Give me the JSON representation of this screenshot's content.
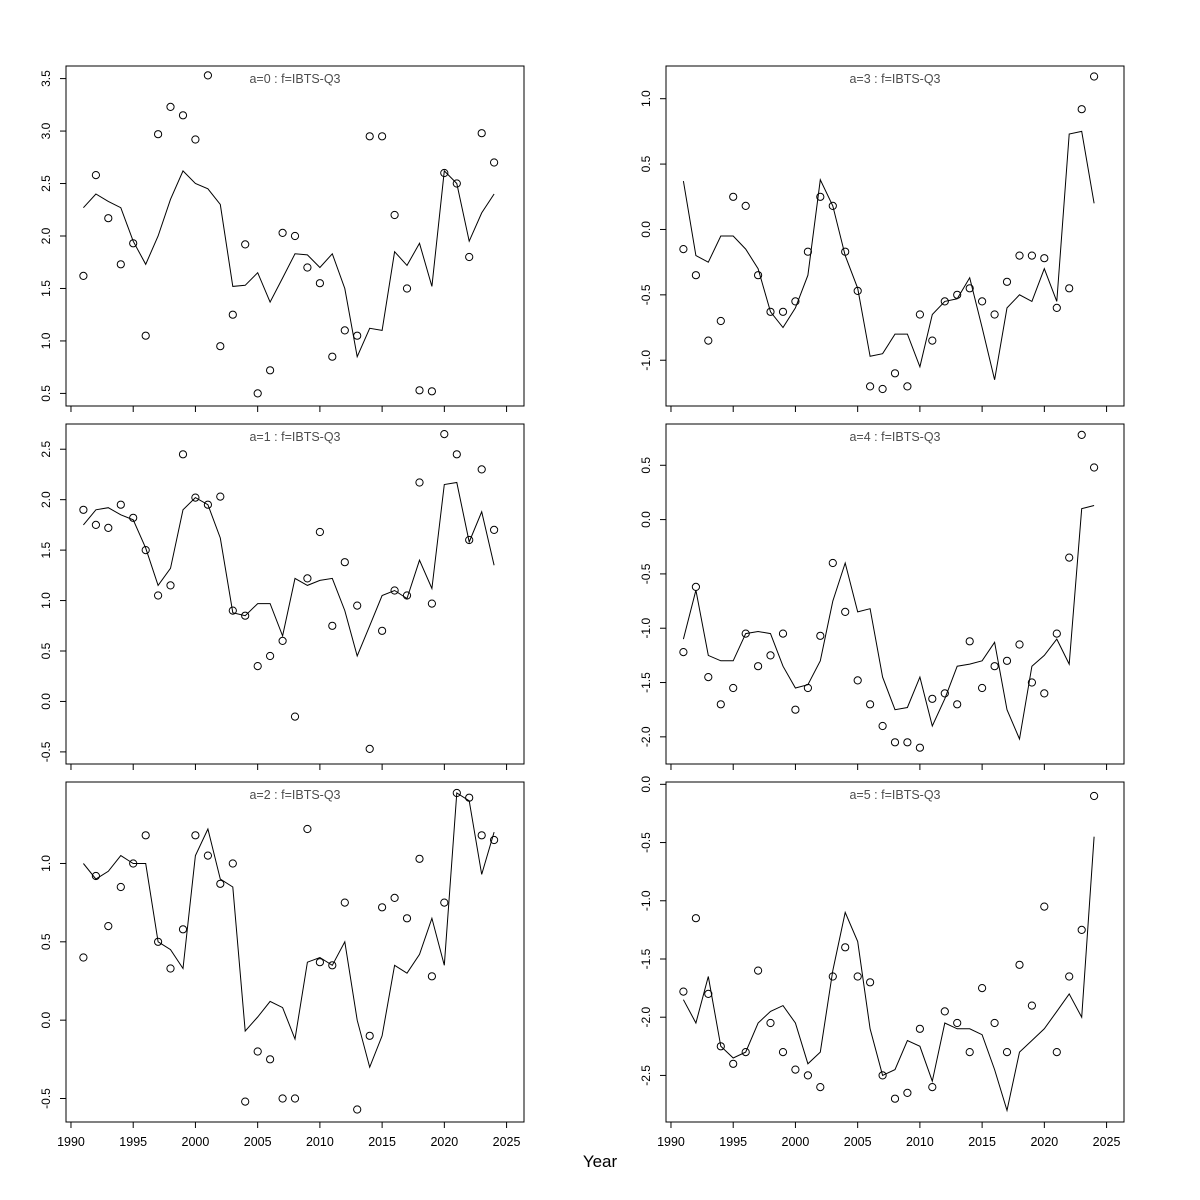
{
  "figure": {
    "background": "#ffffff",
    "axis_color": "#000000",
    "line_color": "#000000",
    "point_color": "#000000",
    "title_color": "#4d4d4d"
  },
  "chart_data": {
    "type": "scatter",
    "description": "Six-panel observed (circles) vs fitted (line) survey index plot, ages 0-5, fleet IBTS-Q3",
    "x_label": "Year",
    "x_lim": [
      1989.6,
      2026.4
    ],
    "x_ticks": [
      1990,
      1995,
      2000,
      2005,
      2010,
      2015,
      2020,
      2025
    ],
    "x": [
      1991,
      1992,
      1993,
      1994,
      1995,
      1996,
      1997,
      1998,
      1999,
      2000,
      2001,
      2002,
      2003,
      2004,
      2005,
      2006,
      2007,
      2008,
      2009,
      2010,
      2011,
      2012,
      2013,
      2014,
      2015,
      2016,
      2017,
      2018,
      2019,
      2020,
      2021,
      2022,
      2023,
      2024
    ],
    "panels": [
      {
        "title": "a=0 : f=IBTS-Q3",
        "y_lim": [
          0.38,
          3.62
        ],
        "y_ticks": [
          0.5,
          1.0,
          1.5,
          2.0,
          2.5,
          3.0,
          3.5
        ],
        "points": [
          1.62,
          2.58,
          2.17,
          1.73,
          1.93,
          1.05,
          2.97,
          3.23,
          3.15,
          2.92,
          3.53,
          0.95,
          1.25,
          1.92,
          0.5,
          0.72,
          2.03,
          2.0,
          1.7,
          1.55,
          0.85,
          1.1,
          1.05,
          2.95,
          2.95,
          2.2,
          1.5,
          0.53,
          0.52,
          2.6,
          2.5,
          1.8,
          2.98,
          2.7
        ],
        "line": [
          2.27,
          2.4,
          2.33,
          2.27,
          1.95,
          1.73,
          2.0,
          2.35,
          2.62,
          2.5,
          2.45,
          2.3,
          1.52,
          1.53,
          1.65,
          1.37,
          1.6,
          1.83,
          1.82,
          1.7,
          1.83,
          1.5,
          0.85,
          1.12,
          1.1,
          1.85,
          1.72,
          1.93,
          1.52,
          2.62,
          2.5,
          1.95,
          2.22,
          2.4
        ]
      },
      {
        "title": "a=1 : f=IBTS-Q3",
        "y_lim": [
          -0.62,
          2.75
        ],
        "y_ticks": [
          -0.5,
          0.0,
          0.5,
          1.0,
          1.5,
          2.0,
          2.5
        ],
        "points": [
          1.9,
          1.75,
          1.72,
          1.95,
          1.82,
          1.5,
          1.05,
          1.15,
          2.45,
          2.02,
          1.95,
          2.03,
          0.9,
          0.85,
          0.35,
          0.45,
          0.6,
          -0.15,
          1.22,
          1.68,
          0.75,
          1.38,
          0.95,
          -0.47,
          0.7,
          1.1,
          1.05,
          2.17,
          0.97,
          2.65,
          2.45,
          1.6,
          2.3,
          1.7
        ],
        "line": [
          1.75,
          1.9,
          1.92,
          1.85,
          1.8,
          1.52,
          1.15,
          1.32,
          1.9,
          2.02,
          1.95,
          1.62,
          0.88,
          0.85,
          0.97,
          0.97,
          0.65,
          1.22,
          1.15,
          1.2,
          1.22,
          0.9,
          0.45,
          0.75,
          1.05,
          1.1,
          1.02,
          1.4,
          1.12,
          2.15,
          2.17,
          1.58,
          1.88,
          1.35
        ]
      },
      {
        "title": "a=2 : f=IBTS-Q3",
        "y_lim": [
          -0.65,
          1.52
        ],
        "y_ticks": [
          -0.5,
          0.0,
          0.5,
          1.0
        ],
        "points": [
          0.4,
          0.92,
          0.6,
          0.85,
          1.0,
          1.18,
          0.5,
          0.33,
          0.58,
          1.18,
          1.05,
          0.87,
          1.0,
          -0.52,
          -0.2,
          -0.25,
          -0.5,
          -0.5,
          1.22,
          0.37,
          0.35,
          0.75,
          -0.57,
          -0.1,
          0.72,
          0.78,
          0.65,
          1.03,
          0.28,
          0.75,
          1.45,
          1.42,
          1.18,
          1.15
        ],
        "line": [
          1.0,
          0.9,
          0.95,
          1.05,
          1.0,
          1.0,
          0.5,
          0.45,
          0.33,
          1.05,
          1.22,
          0.9,
          0.85,
          -0.07,
          0.02,
          0.12,
          0.08,
          -0.12,
          0.37,
          0.4,
          0.35,
          0.5,
          0.0,
          -0.3,
          -0.1,
          0.35,
          0.3,
          0.42,
          0.65,
          0.35,
          1.45,
          1.4,
          0.93,
          1.2
        ]
      },
      {
        "title": "a=3 : f=IBTS-Q3",
        "y_lim": [
          -1.35,
          1.25
        ],
        "y_ticks": [
          -1.0,
          -0.5,
          0.0,
          0.5,
          1.0
        ],
        "points": [
          -0.15,
          -0.35,
          -0.85,
          -0.7,
          0.25,
          0.18,
          -0.35,
          -0.63,
          -0.63,
          -0.55,
          -0.17,
          0.25,
          0.18,
          -0.17,
          -0.47,
          -1.2,
          -1.22,
          -1.1,
          -1.2,
          -0.65,
          -0.85,
          -0.55,
          -0.5,
          -0.45,
          -0.55,
          -0.65,
          -0.4,
          -0.2,
          -0.2,
          -0.22,
          -0.6,
          -0.45,
          0.92,
          1.17
        ],
        "line": [
          0.37,
          -0.2,
          -0.25,
          -0.05,
          -0.05,
          -0.15,
          -0.3,
          -0.63,
          -0.75,
          -0.6,
          -0.35,
          0.38,
          0.18,
          -0.2,
          -0.45,
          -0.97,
          -0.95,
          -0.8,
          -0.8,
          -1.05,
          -0.65,
          -0.55,
          -0.53,
          -0.37,
          -0.75,
          -1.15,
          -0.6,
          -0.5,
          -0.55,
          -0.3,
          -0.55,
          0.73,
          0.75,
          0.2
        ]
      },
      {
        "title": "a=4 : f=IBTS-Q3",
        "y_lim": [
          -2.25,
          0.88
        ],
        "y_ticks": [
          -2.0,
          -1.5,
          -1.0,
          -0.5,
          0.0,
          0.5
        ],
        "points": [
          -1.22,
          -0.62,
          -1.45,
          -1.7,
          -1.55,
          -1.05,
          -1.35,
          -1.25,
          -1.05,
          -1.75,
          -1.55,
          -1.07,
          -0.4,
          -0.85,
          -1.48,
          -1.7,
          -1.9,
          -2.05,
          -2.05,
          -2.1,
          -1.65,
          -1.6,
          -1.7,
          -1.12,
          -1.55,
          -1.35,
          -1.3,
          -1.15,
          -1.5,
          -1.6,
          -1.05,
          -0.35,
          0.78,
          0.48
        ],
        "line": [
          -1.1,
          -0.65,
          -1.25,
          -1.3,
          -1.3,
          -1.05,
          -1.03,
          -1.05,
          -1.35,
          -1.55,
          -1.52,
          -1.3,
          -0.75,
          -0.4,
          -0.85,
          -0.82,
          -1.45,
          -1.75,
          -1.73,
          -1.45,
          -1.9,
          -1.65,
          -1.35,
          -1.33,
          -1.3,
          -1.13,
          -1.75,
          -2.02,
          -1.35,
          -1.25,
          -1.1,
          -1.33,
          0.1,
          0.13
        ]
      },
      {
        "title": "a=5 : f=IBTS-Q3",
        "y_lim": [
          -2.9,
          0.02
        ],
        "y_ticks": [
          -2.5,
          -2.0,
          -1.5,
          -1.0,
          -0.5,
          0.0
        ],
        "points": [
          -1.78,
          -1.15,
          -1.8,
          -2.25,
          -2.4,
          -2.3,
          -1.6,
          -2.05,
          -2.3,
          -2.45,
          -2.5,
          -2.6,
          -1.65,
          -1.4,
          -1.65,
          -1.7,
          -2.5,
          -2.7,
          -2.65,
          -2.1,
          -2.6,
          -1.95,
          -2.05,
          -2.3,
          -1.75,
          -2.05,
          -2.3,
          -1.55,
          -1.9,
          -1.05,
          -2.3,
          -1.65,
          -1.25,
          -0.1
        ],
        "line": [
          -1.85,
          -2.05,
          -1.65,
          -2.25,
          -2.35,
          -2.3,
          -2.05,
          -1.95,
          -1.9,
          -2.05,
          -2.4,
          -2.3,
          -1.6,
          -1.1,
          -1.35,
          -2.1,
          -2.5,
          -2.45,
          -2.2,
          -2.25,
          -2.55,
          -2.05,
          -2.1,
          -2.1,
          -2.15,
          -2.45,
          -2.8,
          -2.3,
          -2.2,
          -2.1,
          -1.95,
          -1.8,
          -2.0,
          -0.45
        ]
      }
    ]
  }
}
